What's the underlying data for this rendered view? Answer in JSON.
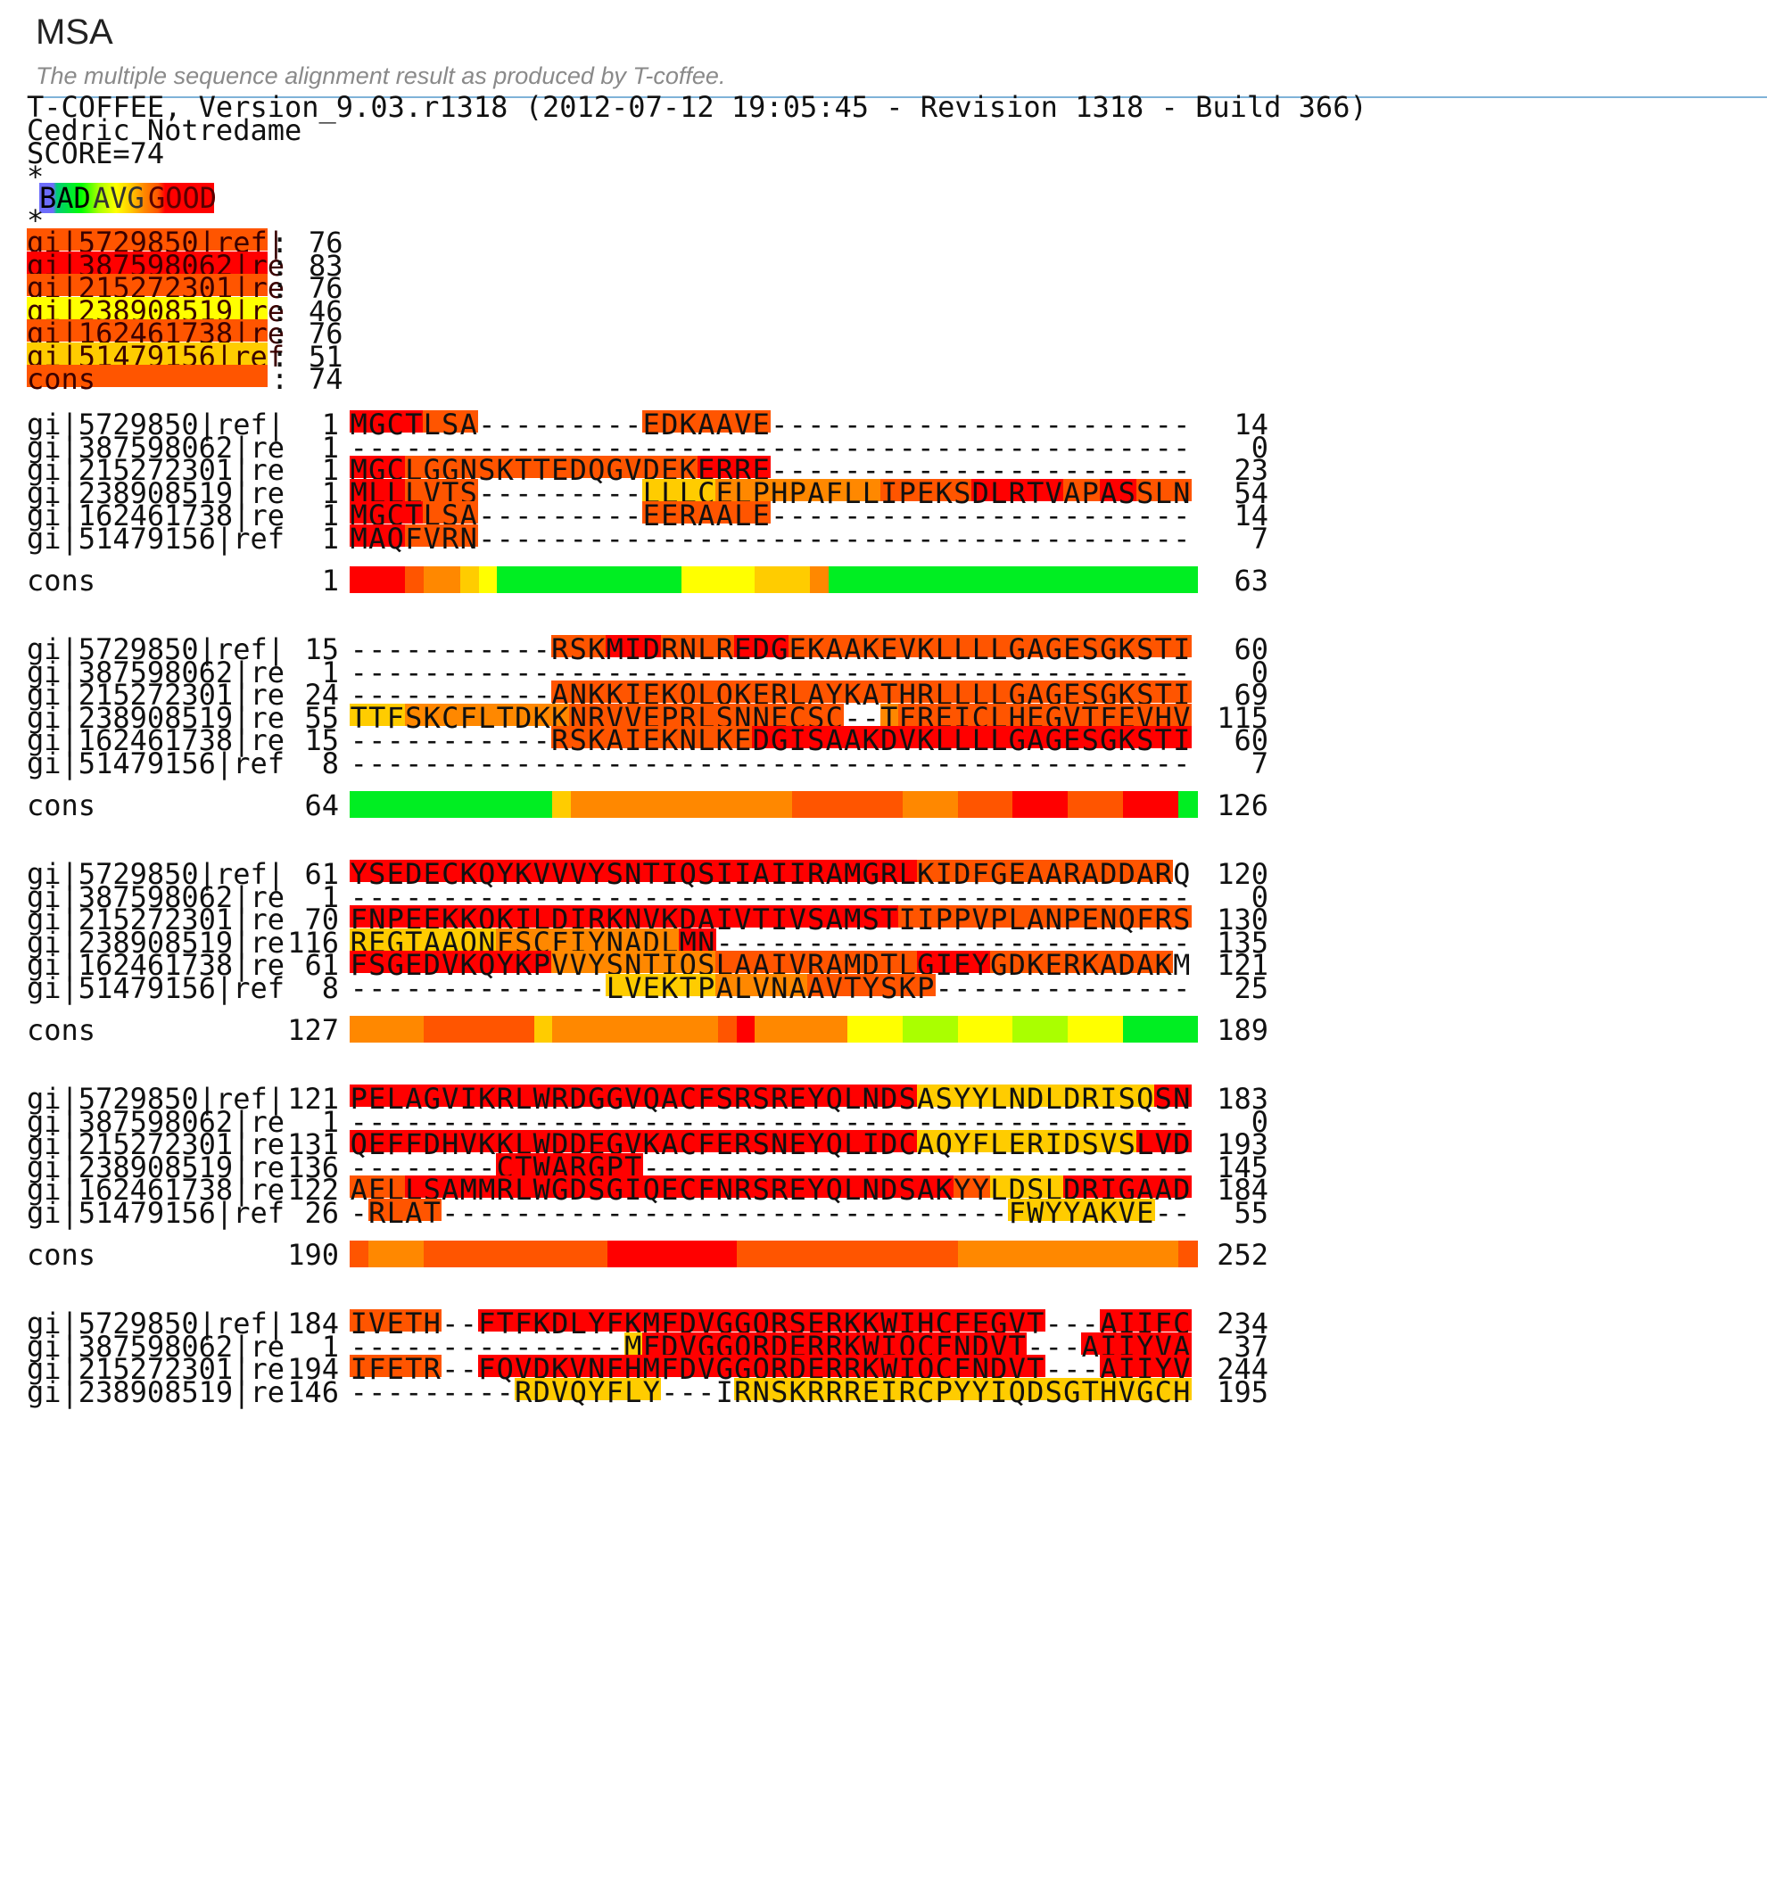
{
  "page": {
    "title": "MSA",
    "subtitle": "The multiple sequence alignment result as produced by T-coffee."
  },
  "header_lines": [
    "T-COFFEE, Version_9.03.r1318 (2012-07-12 19:05:45 - Revision 1318 - Build 366)",
    "Cedric Notredame",
    "SCORE=74",
    "*",
    "*"
  ],
  "legend": {
    "bad": "BAD",
    "avg": "AVG",
    "good": "GOOD"
  },
  "colors": {
    "c0": "#6d6dfb",
    "c1": "#00cc77",
    "c2": "#00ee22",
    "c3": "#00ff00",
    "c4": "#aaff00",
    "c5": "#ffff00",
    "c6": "#ffcc00",
    "c7": "#ff8800",
    "c8": "#ff5500",
    "c9": "#ff0000",
    "gap": "#ffffff"
  },
  "scores": [
    {
      "name": "gi|5729850|ref|",
      "score": "76",
      "color": "c8"
    },
    {
      "name": "gi|387598062|re",
      "score": "83",
      "color": "c9"
    },
    {
      "name": "gi|215272301|re",
      "score": "76",
      "color": "c8"
    },
    {
      "name": "gi|238908519|re",
      "score": "46",
      "color": "c5"
    },
    {
      "name": "gi|162461738|re",
      "score": "76",
      "color": "c8"
    },
    {
      "name": "gi|51479156|ref",
      "score": "51",
      "color": "c6"
    },
    {
      "name": "cons",
      "score": "74",
      "color": "c8"
    }
  ],
  "alignment_blocks": [
    {
      "rows": [
        {
          "name": "gi|5729850|ref|",
          "start": "1",
          "end": "14",
          "seq": "MGCTLSA---------EDKAAVE-------------------------------------------",
          "colors": "9999888_________8888888___________________________________________"
        },
        {
          "name": "gi|387598062|re",
          "start": "1",
          "end": "0",
          "seq": "---------------------------------------------------------------",
          "colors": "_______________________________________________________________"
        },
        {
          "name": "gi|215272301|re",
          "start": "1",
          "end": "23",
          "seq": "MGCLGGNSKTTEDQGVDEKERRE----------------------------------------",
          "colors": "99988888888888888889999________________________________________"
        },
        {
          "name": "gi|238908519|re",
          "start": "1",
          "end": "54",
          "seq": "MLLLVTS---------LLLCELPHPAFLLIPEKSDLRTVAPASSLNVRFDSRTMNLSWDCQEN",
          "colors": "9998888_________666677777777788888999998899888888999888888888888"
        },
        {
          "name": "gi|162461738|re",
          "start": "1",
          "end": "14",
          "seq": "MGCTLSA---------EERAALE------------------------------------------",
          "colors": "9999888_________8888888__________________________________________"
        },
        {
          "name": "gi|51479156|ref",
          "start": "1",
          "end": "7",
          "seq": "MAQFVRN--------------------------------------------------------",
          "colors": "9998888________________________________________________________"
        }
      ],
      "cons": {
        "start": "1",
        "end": "63",
        "colors": "999877652222222222555566672222222222222222222222222222222222222"
      }
    },
    {
      "rows": [
        {
          "name": "gi|5729850|ref|",
          "start": "15",
          "end": "60",
          "seq": "-----------RSKMIDRNLREDGEKAAKEVKLLLLGAGESGKSTIV-----KQMKIIHED-G",
          "colors": "___________888999888899988888888888888888888888_____999999999_9"
        },
        {
          "name": "gi|387598062|re",
          "start": "1",
          "end": "0",
          "seq": "---------------------------------------------------------------",
          "colors": "_______________________________________________________________"
        },
        {
          "name": "gi|215272301|re",
          "start": "24",
          "end": "69",
          "seq": "-----------ANKKIEKQLQKERLAYKATHRLLLLGAGESGKSTIV-----KQMRILHVN-G",
          "colors": "___________888888888888888888888888888888888888_____999998888_9"
        },
        {
          "name": "gi|238908519|re",
          "start": "55",
          "end": "115",
          "seq": "TTFSKCFLTDKKNRVVEPRLSNNECSC--TFREICLHEGVTFEVHVNTSQRGFQQKLLYPNSG",
          "colors": "666777777777888888888888888__7888888888888888888888888888888888"
        },
        {
          "name": "gi|162461738|re",
          "start": "15",
          "end": "60",
          "seq": "-----------RSKAIEKNLKEDGISAAKDVKLLLLGAGESGKSTIV-----KQMKIIHED-G",
          "colors": "___________888888888889999999999999999999999999_____999999999_9"
        },
        {
          "name": "gi|51479156|ref",
          "start": "8",
          "end": "7",
          "seq": "---------------------------------------------------------------",
          "colors": "_______________________________________________________________"
        }
      ],
      "cons": {
        "start": "64",
        "end": "126",
        "colors": "222222222226777777777777888888777888999888999222229887777727"
      }
    },
    {
      "rows": [
        {
          "name": "gi|5729850|ref|",
          "start": "61",
          "end": "120",
          "seq": "YSEDECKQYKVVVYSNTIQSIIAIIRAMGRLKIDFGEAARADDARQ--LFVLAGSAEE-GVMT",
          "colors": "999999999999999999999999999999988888888888888__8888888888_6688"
        },
        {
          "name": "gi|387598062|re",
          "start": "1",
          "end": "0",
          "seq": "---------------------------------------------------------------",
          "colors": "_______________________________________________________________"
        },
        {
          "name": "gi|215272301|re",
          "start": "70",
          "end": "130",
          "seq": "FNPEEKKQKILDIRKNVKDAIVTIVSAMSTIIPPVPLANPENQFRSDYIKS-IAPITD-FEYS",
          "colors": "999999999999999999999999999999888888888888888888888_666666_6669"
        },
        {
          "name": "gi|238908519|re",
          "start": "116",
          "end": "135",
          "seq": "REGTAAQNFSCFIYNADLMN-------------------------------------------",
          "colors": "66666666777777777799____________________________________________"
        },
        {
          "name": "gi|162461738|re",
          "start": "61",
          "end": "121",
          "seq": "FSGEDVKQYKPVVYSNTIQSLAAIVRAMDTLGIEYGDKERKADAKM--VCDVVSRMEDTEPFS",
          "colors": "999999999997777777778888888888899998888888888__9999999999966699"
        },
        {
          "name": "gi|51479156|ref",
          "start": "8",
          "end": "25",
          "seq": "--------------LVEKTPALVNAAVTYSKP-------------------------------",
          "colors": "______________666666777778888888_______________________________"
        }
      ],
      "cons": {
        "start": "127",
        "end": "189",
        "colors": "777788888867777777778977777555444555444555222244455553444567"
      }
    },
    {
      "rows": [
        {
          "name": "gi|5729850|ref|",
          "start": "121",
          "end": "183",
          "seq": "PELAGVIKRLWRDGGVQACFSRSREYQLNDSASYYLNDLDRISQSNYIPTQQDVLRTRVKTTG",
          "colors": "999999999999999999999999999999966666666666669999666666666999999"
        },
        {
          "name": "gi|387598062|re",
          "start": "1",
          "end": "0",
          "seq": "---------------------------------------------------------------",
          "colors": "_______________________________________________________________"
        },
        {
          "name": "gi|215272301|re",
          "start": "131",
          "end": "193",
          "seq": "QEFFDHVKKLWDDEGVKACFERSNEYQLIDCAQYFLERIDSVSLVDYTPTDQDLLRCRVLTSG",
          "colors": "999999999999999999999999999999966666666666699999999999999999999"
        },
        {
          "name": "gi|238908519|re",
          "start": "136",
          "end": "145",
          "seq": "--------CTWARGPT-------------------------------------A-P--------",
          "colors": "________99999999_____________________________________8_8________"
        },
        {
          "name": "gi|162461738|re",
          "start": "122",
          "end": "184",
          "seq": "AELLSAMMRLWGDSGIQECFNRSREYQLNDSAKYYLDSLDRIGAADYQPTEQDILRTRVKTTG",
          "colors": "888999999999999999999999999999999886666999999999999999999999999"
        },
        {
          "name": "gi|51479156|ref",
          "start": "26",
          "end": "55",
          "seq": "-RLAT-------------------------------FWYYAKVE-----LVPPTPAEIPRAIQSLKK",
          "colors": "_8888_______________________________66666666_____6668888888888888"
        }
      ],
      "cons": {
        "start": "190",
        "end": "252",
        "colors": "877788888888889999999888888888888777777777777888787888899988776"
      }
    },
    {
      "rows": [
        {
          "name": "gi|5729850|ref|",
          "start": "184",
          "end": "234",
          "seq": "IVETH--FTFKDLYFKMFDVGGQRSERKKWIHCFEGVT---AIIFCV--AL-----SDYDLVL",
          "colors": "88888__9999999999999999999999999999999___999999__99_____9999999"
        },
        {
          "name": "gi|387598062|re",
          "start": "1",
          "end": "37",
          "seq": "---------------MFDVGGQRDERRKWIQCFNDVT---AIIYVA--AC-----SSYNMVI",
          "colors": "_______________6999999999999999999999___999999__99_____9999999"
        },
        {
          "name": "gi|215272301|re",
          "start": "194",
          "end": "244",
          "seq": "IFETR--FQVDKVNFHMFDVGGQRDERRKWIQCFNDVT---AIIYVA--AC-----SSYNMVI",
          "colors": "88888__9999999999999999999999999999999___999999__99_____9999999"
        },
        {
          "name": "gi|238908519|re",
          "start": "146",
          "end": "195",
          "seq": "---------RDVQYFLY---IRNSKRRREIRCPYYIQDSGTHVGCHLDNLSGLTSRNYFLVN",
          "colors": "_________666666666___66666666666666666666666666666666666666666"
        }
      ]
    }
  ]
}
